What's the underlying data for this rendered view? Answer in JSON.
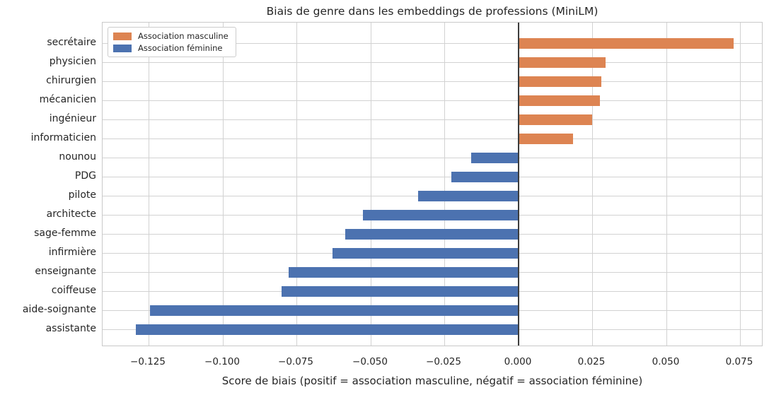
{
  "chart_data": {
    "type": "bar",
    "orientation": "horizontal",
    "title": "Biais de genre dans les embeddings de professions (MiniLM)",
    "xlabel": "Score de biais (positif = association masculine, négatif = association féminine)",
    "ylabel": "",
    "categories": [
      "secrétaire",
      "physicien",
      "chirurgien",
      "mécanicien",
      "ingénieur",
      "informaticien",
      "nounou",
      "PDG",
      "pilote",
      "architecte",
      "sage-femme",
      "infirmière",
      "enseignante",
      "coiffeuse",
      "aide-soignante",
      "assistante"
    ],
    "values": [
      0.0726,
      0.0294,
      0.0281,
      0.0274,
      0.0249,
      0.0185,
      -0.016,
      -0.0226,
      -0.034,
      -0.0526,
      -0.0585,
      -0.0629,
      -0.0778,
      -0.0802,
      -0.1246,
      -0.1293
    ],
    "positive_color": "#dd8452",
    "negative_color": "#4c72b0",
    "xlim": [
      -0.1406,
      0.0828
    ],
    "xticks": [
      -0.125,
      -0.1,
      -0.075,
      -0.05,
      -0.025,
      0,
      0.025,
      0.05,
      0.075
    ],
    "xtick_labels": [
      "−0.125",
      "−0.100",
      "−0.075",
      "−0.050",
      "−0.025",
      "0.000",
      "0.025",
      "0.050",
      "0.075"
    ],
    "grid": true,
    "grid_axis": "both",
    "zero_line": true,
    "legend_position": "upper left",
    "legend": {
      "items": [
        {
          "label": "Association masculine",
          "color": "#dd8452"
        },
        {
          "label": "Association féminine",
          "color": "#4c72b0"
        }
      ]
    },
    "colors": {
      "text": "#262626",
      "grid": "#d2d2d2",
      "border": "#c9c9c9",
      "zero_line": "#3d3d3d",
      "background": "#ffffff"
    }
  }
}
